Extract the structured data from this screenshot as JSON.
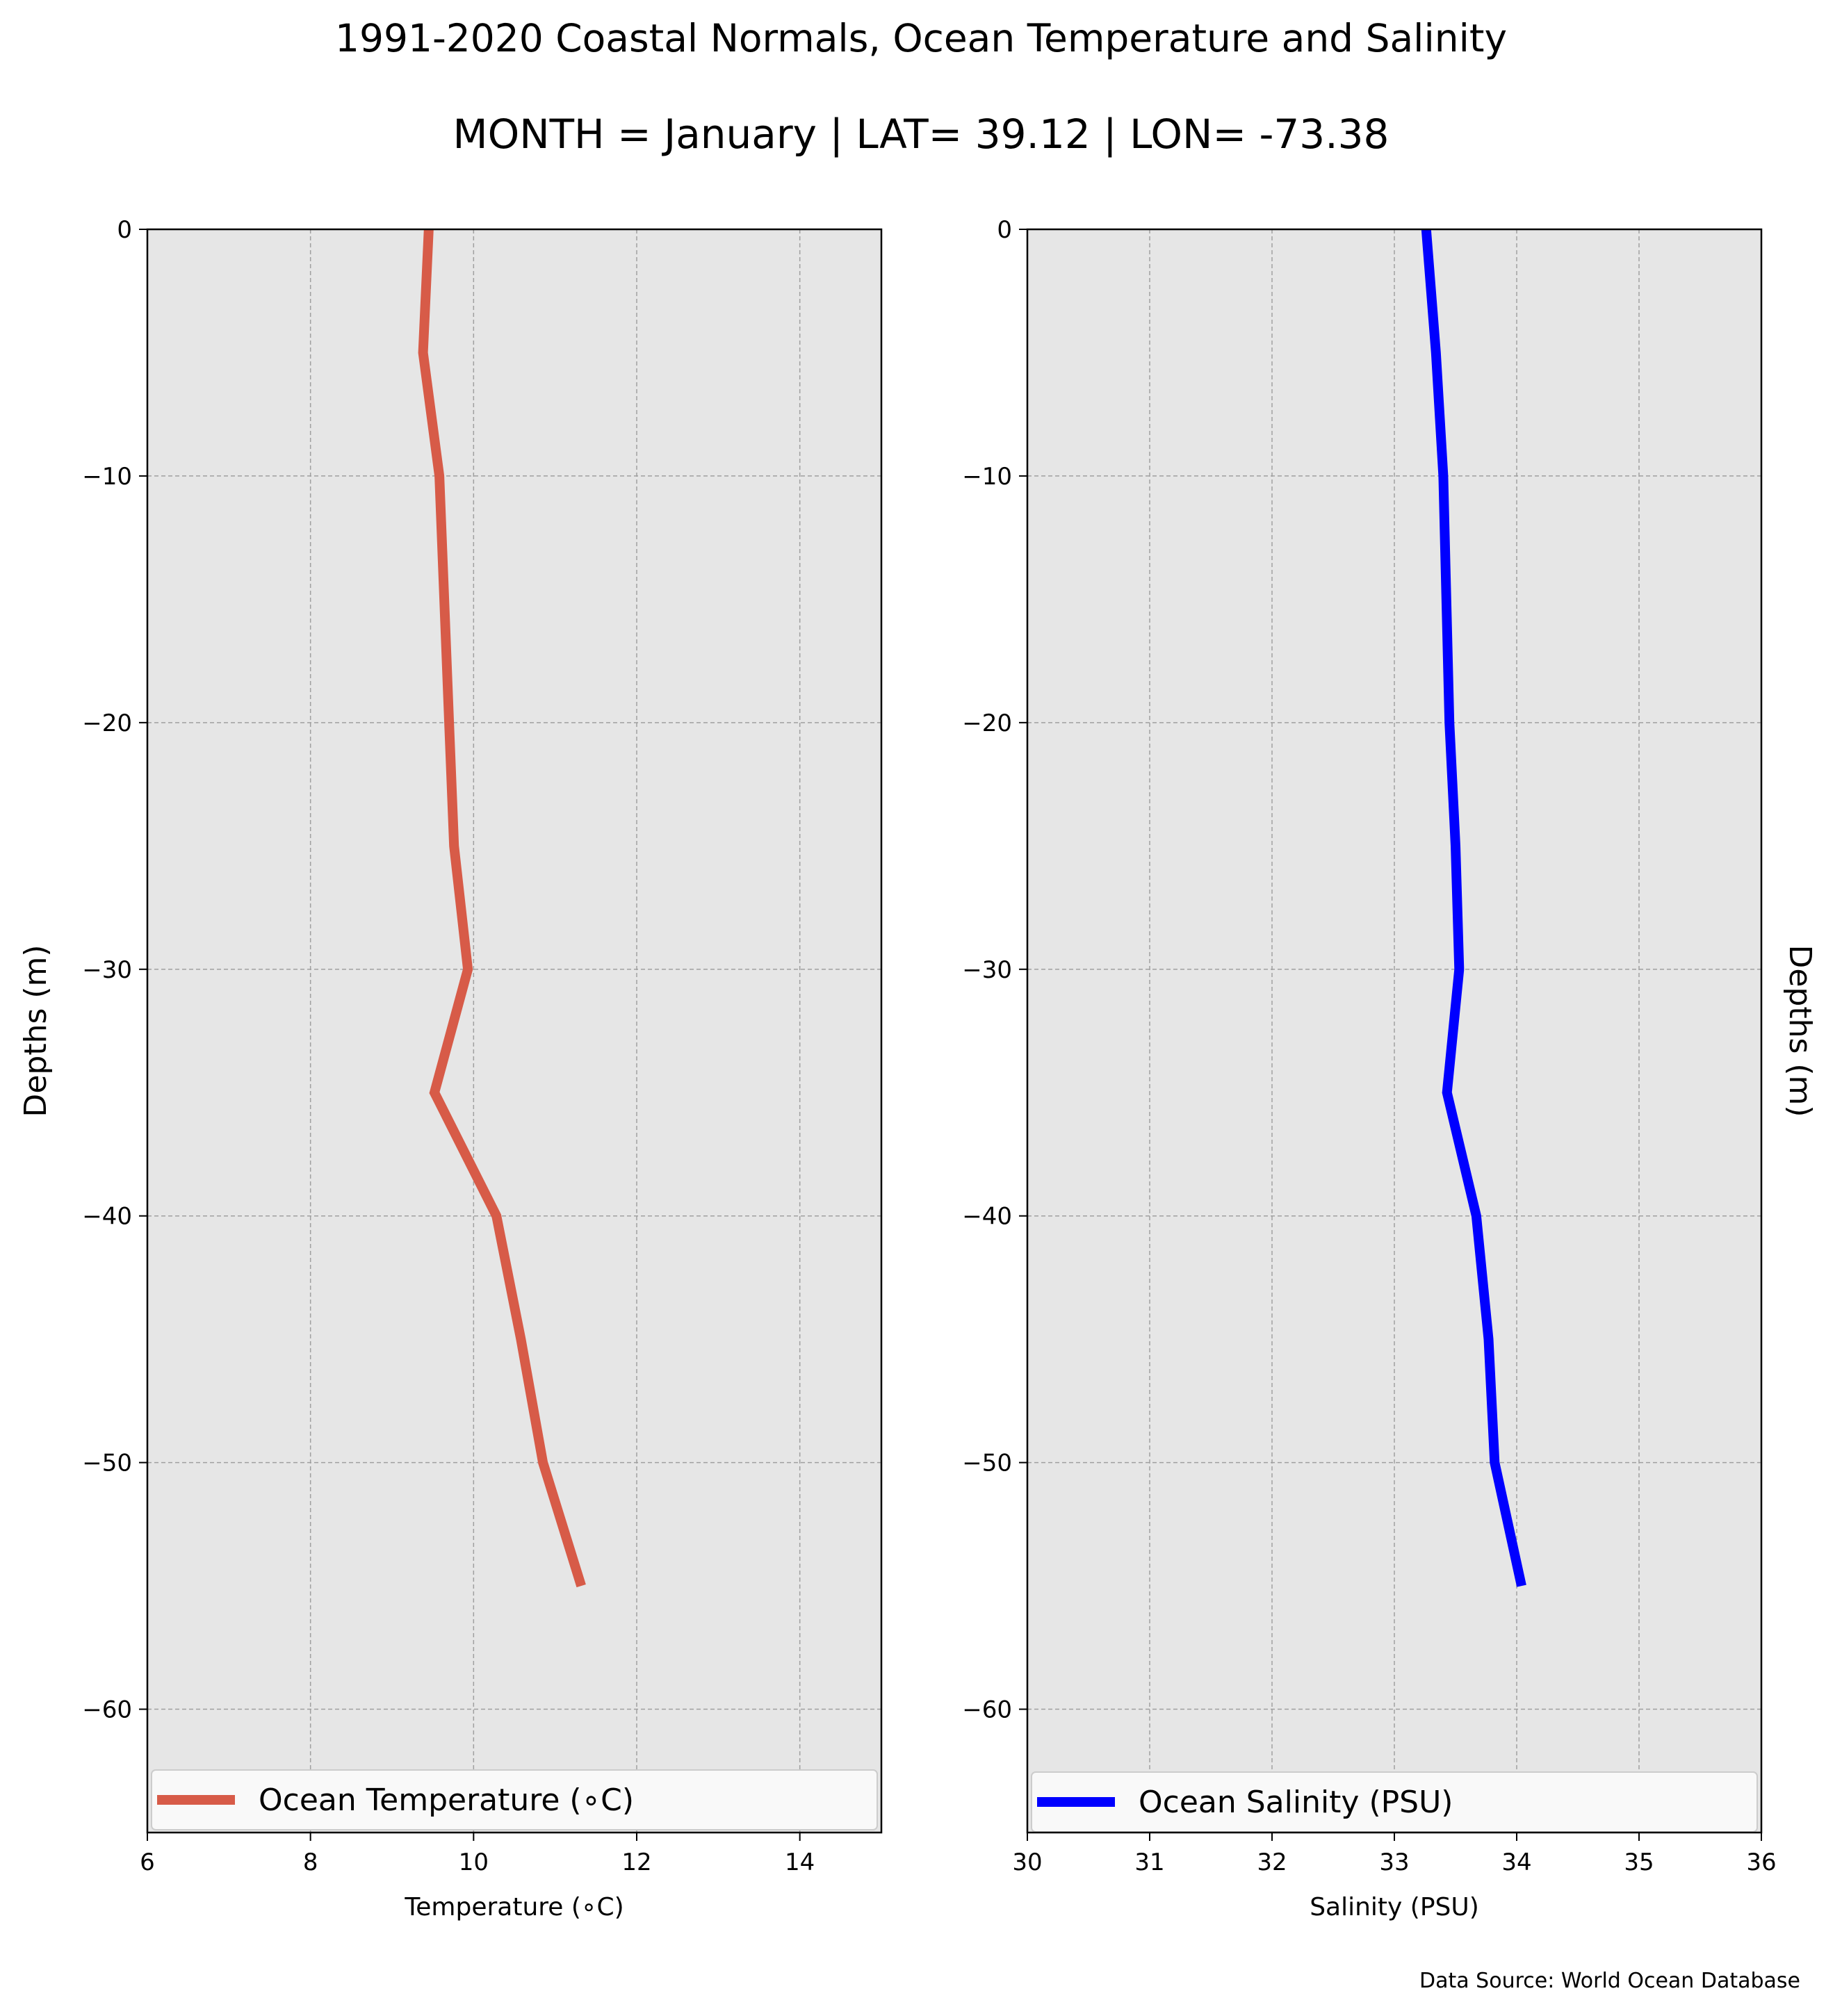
{
  "title": "1991-2020 Coastal Normals, Ocean Temperature and Salinity",
  "subtitle": "MONTH = January | LAT= 39.12 | LON= -73.38",
  "source_note": "Data Source: World Ocean Database",
  "colors": {
    "axes_bg": "#e6e6e6",
    "grid": "#a0a0a0",
    "temperature_line": "#d75b48",
    "salinity_line": "#0000ff"
  },
  "chart_data": [
    {
      "type": "line",
      "title": "",
      "xlabel": "Temperature ($^\\circ$C)",
      "xlabel_display": "Temperature (∘C)",
      "ylabel": "Depths (m)",
      "ylabel_side": "left",
      "xlim": [
        6,
        15
      ],
      "ylim": [
        -65,
        0
      ],
      "xticks": [
        6,
        8,
        10,
        12,
        14
      ],
      "yticks": [
        0,
        -10,
        -20,
        -30,
        -40,
        -50,
        -60
      ],
      "grid": true,
      "legend_position": "bottom",
      "series": [
        {
          "name": "Ocean Temperature (∘C)",
          "color": "#d75b48",
          "x": [
            9.45,
            9.38,
            9.58,
            9.7,
            9.76,
            9.93,
            9.52,
            10.28,
            10.58,
            10.85,
            11.32
          ],
          "y": [
            0,
            -5,
            -10,
            -20,
            -25,
            -30,
            -35,
            -40,
            -45,
            -50,
            -55
          ]
        }
      ]
    },
    {
      "type": "line",
      "title": "",
      "xlabel": "Salinity (PSU)",
      "ylabel": "Depths (m)",
      "ylabel_side": "right",
      "xlim": [
        30,
        36
      ],
      "ylim": [
        -65,
        0
      ],
      "xticks": [
        30,
        31,
        32,
        33,
        34,
        35,
        36
      ],
      "yticks": [
        0,
        -10,
        -20,
        -30,
        -40,
        -50,
        -60
      ],
      "grid": true,
      "legend_position": "bottom",
      "series": [
        {
          "name": "Ocean Salinity (PSU)",
          "color": "#0000ff",
          "x": [
            33.26,
            33.34,
            33.4,
            33.45,
            33.5,
            33.53,
            33.43,
            33.67,
            33.77,
            33.82,
            34.04
          ],
          "y": [
            0,
            -5,
            -10,
            -20,
            -25,
            -30,
            -35,
            -40,
            -45,
            -50,
            -55
          ]
        }
      ]
    }
  ]
}
